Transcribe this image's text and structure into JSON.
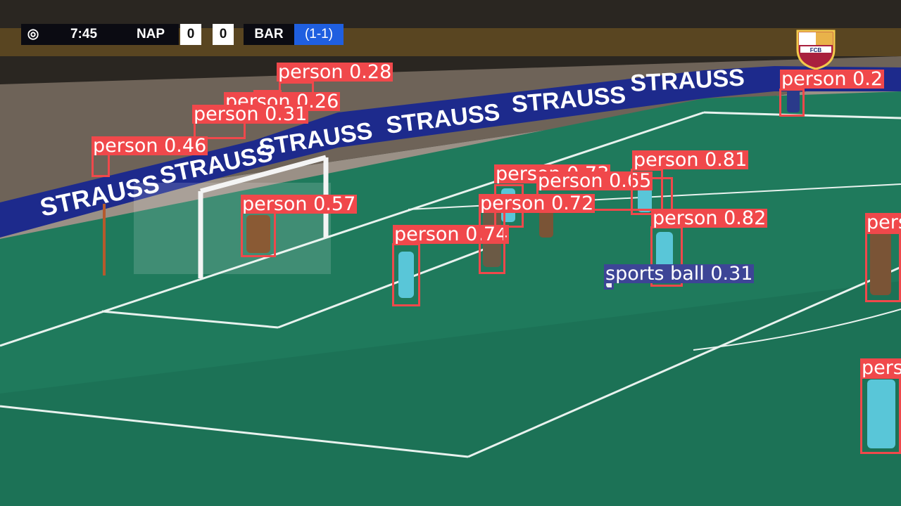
{
  "scoreboard": {
    "clock": "7:45",
    "home_team": "NAP",
    "home_score": "0",
    "away_score": "0",
    "away_team": "BAR",
    "aggregate": "(1-1)"
  },
  "ad_board_text": "STRAUSS",
  "crest_text": "FCB",
  "colors": {
    "person_box": "#f0484b",
    "ball_box": "#3d4596",
    "pitch": "#1f7a5c",
    "ad_board": "#1d2a8c",
    "aggregate_bg": "#1f5fe0"
  },
  "detections": [
    {
      "label": "person 0.28",
      "color": "red"
    },
    {
      "label": "person 0.26",
      "color": "red"
    },
    {
      "label": "person 0.31",
      "color": "red"
    },
    {
      "label": "person 0.46",
      "color": "red"
    },
    {
      "label": "person 0.57",
      "color": "red"
    },
    {
      "label": "person 0.74",
      "color": "red"
    },
    {
      "label": "person 0.73",
      "color": "red"
    },
    {
      "label": "person 0.65",
      "color": "red"
    },
    {
      "label": "person 0.72",
      "color": "red"
    },
    {
      "label": "person 0.81",
      "color": "red"
    },
    {
      "label": "person 0.82",
      "color": "red"
    },
    {
      "label": "sports ball 0.31",
      "color": "blue"
    },
    {
      "label": "person 0.2",
      "color": "red"
    },
    {
      "label": "perso",
      "color": "red"
    },
    {
      "label": "pers",
      "color": "red"
    }
  ]
}
